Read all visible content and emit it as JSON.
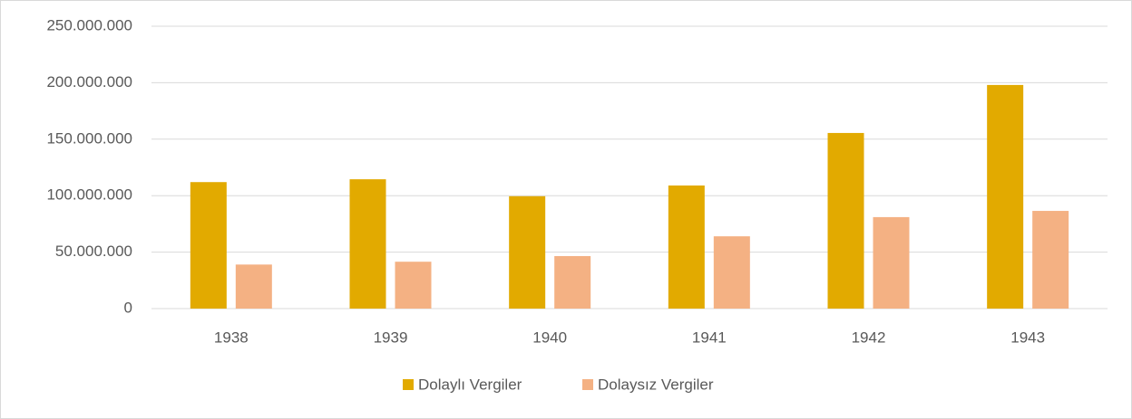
{
  "chart_data": {
    "type": "bar",
    "categories": [
      "1938",
      "1939",
      "1940",
      "1941",
      "1942",
      "1943"
    ],
    "series": [
      {
        "name": "Dolaylı Vergiler",
        "color": "#e2aa00",
        "values": [
          112000000,
          114500000,
          99500000,
          109000000,
          155500000,
          198000000
        ]
      },
      {
        "name": "Dolaysız Vergiler",
        "color": "#f4b183",
        "values": [
          39000000,
          41500000,
          46500000,
          64000000,
          81000000,
          86500000
        ]
      }
    ],
    "ylim": [
      0,
      250000000
    ],
    "yticks": [
      0,
      {
        "value": 50000000,
        "label": "50.000.000"
      },
      {
        "value": 100000000,
        "label": "100.000.000"
      },
      {
        "value": 150000000,
        "label": "150.000.000"
      },
      {
        "value": 200000000,
        "label": "200.000.000"
      },
      {
        "value": 250000000,
        "label": "250.000.000"
      }
    ],
    "grid": true,
    "legend": "bottom"
  }
}
